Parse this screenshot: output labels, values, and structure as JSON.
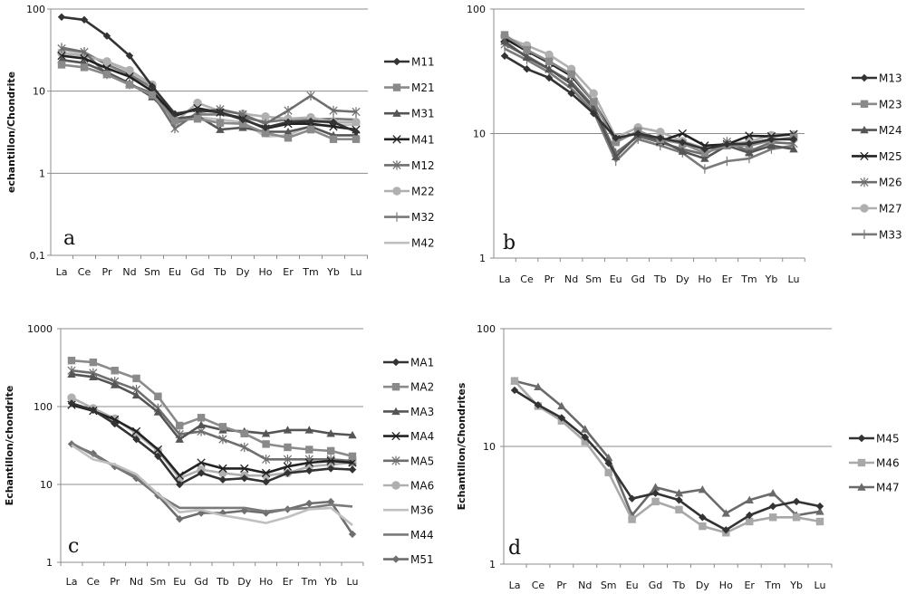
{
  "chart_data": [
    {
      "id": "a",
      "type": "line",
      "panel_label": "a",
      "ylabel": "echantillon/Chondrite",
      "yscale": "log",
      "ylim": [
        0.1,
        100
      ],
      "yticks": [
        "100",
        "10",
        "1",
        "0,1"
      ],
      "ytick_values": [
        100,
        10,
        1,
        0.1
      ],
      "grid": true,
      "legend": "right",
      "categories": [
        "La",
        "Ce",
        "Pr",
        "Nd",
        "Sm",
        "Eu",
        "Gd",
        "Tb",
        "Dy",
        "Ho",
        "Er",
        "Tm",
        "Yb",
        "Lu"
      ],
      "series": [
        {
          "name": "M11",
          "marker": "diamond",
          "color": "#333333",
          "values": [
            80,
            74,
            47,
            27,
            11.5,
            5.3,
            5.9,
            5.5,
            4.5,
            3.6,
            4.2,
            4.3,
            4.2,
            3.2
          ]
        },
        {
          "name": "M21",
          "marker": "square",
          "color": "#8a8a8a",
          "values": [
            21,
            19.5,
            16,
            12,
            9,
            4.4,
            4.6,
            4.1,
            4.0,
            3.1,
            2.7,
            3.4,
            2.6,
            2.6
          ]
        },
        {
          "name": "M31",
          "marker": "triangle",
          "color": "#555555",
          "values": [
            24,
            22,
            17,
            12.5,
            8.5,
            4.6,
            5.0,
            3.4,
            3.6,
            3.2,
            3.2,
            3.7,
            2.9,
            2.9
          ]
        },
        {
          "name": "M41",
          "marker": "x",
          "color": "#222222",
          "values": [
            27,
            25,
            19,
            15,
            10,
            5.0,
            6.2,
            5.5,
            4.6,
            3.5,
            4.0,
            4.0,
            3.7,
            3.4
          ]
        },
        {
          "name": "M12",
          "marker": "star",
          "color": "#6e6e6e",
          "values": [
            33,
            30,
            16,
            12,
            9.5,
            3.5,
            5.5,
            6.0,
            5.2,
            4.0,
            5.8,
            8.8,
            5.8,
            5.6
          ]
        },
        {
          "name": "M22",
          "marker": "circle",
          "color": "#b0b0b0",
          "values": [
            29,
            27,
            23,
            18,
            12,
            4.2,
            7.2,
            5.7,
            5.3,
            4.9,
            4.6,
            4.8,
            4.2,
            4.2
          ]
        },
        {
          "name": "M32",
          "marker": "plus",
          "color": "#7a7a7a",
          "values": [
            34,
            30,
            21,
            16,
            11,
            4.0,
            5.2,
            5.2,
            4.8,
            4.2,
            4.5,
            4.5,
            4.6,
            4.5
          ]
        },
        {
          "name": "M42",
          "marker": "dash",
          "color": "#c0c0c0",
          "values": [
            32,
            28,
            22,
            17,
            11.5,
            4.3,
            4.8,
            4.5,
            4.2,
            2.8,
            2.9,
            3.8,
            3.9,
            3.9
          ]
        }
      ]
    },
    {
      "id": "b",
      "type": "line",
      "panel_label": "b",
      "ylabel": "",
      "yscale": "log",
      "ylim": [
        1,
        100
      ],
      "yticks": [
        "100",
        "10",
        "1"
      ],
      "ytick_values": [
        100,
        10,
        1
      ],
      "grid": true,
      "legend": "right",
      "categories": [
        "La",
        "Ce",
        "Pr",
        "Nd",
        "Sm",
        "Eu",
        "Gd",
        "Tb",
        "Dy",
        "Ho",
        "Er",
        "Tm",
        "Yb",
        "Lu"
      ],
      "series": [
        {
          "name": "M13",
          "marker": "diamond",
          "color": "#333333",
          "values": [
            42,
            33,
            28,
            21,
            14.5,
            9.2,
            10,
            9.2,
            8.5,
            7.5,
            8.2,
            8.3,
            9.0,
            9.0
          ]
        },
        {
          "name": "M23",
          "marker": "square",
          "color": "#8a8a8a",
          "values": [
            62,
            47,
            38,
            30,
            18,
            8.5,
            10.5,
            9.0,
            8.3,
            7.0,
            8.0,
            8.0,
            8.8,
            9.3
          ]
        },
        {
          "name": "M24",
          "marker": "triangle",
          "color": "#555555",
          "values": [
            55,
            41,
            33,
            25,
            16,
            6.5,
            9.8,
            8.8,
            7.2,
            6.3,
            8.0,
            7.0,
            8.0,
            7.5
          ]
        },
        {
          "name": "M25",
          "marker": "x",
          "color": "#222222",
          "values": [
            58,
            46,
            37,
            29,
            18,
            9.0,
            10.2,
            8.7,
            10.0,
            8.0,
            8.2,
            9.6,
            9.5,
            9.9
          ]
        },
        {
          "name": "M26",
          "marker": "star",
          "color": "#6e6e6e",
          "values": [
            52,
            42,
            33,
            26,
            16.5,
            7.0,
            9.5,
            8.5,
            7.5,
            6.8,
            8.6,
            7.2,
            8.5,
            8.3
          ]
        },
        {
          "name": "M27",
          "marker": "circle",
          "color": "#b0b0b0",
          "values": [
            60,
            51,
            43,
            33,
            21,
            9.3,
            11.2,
            10.3,
            8.7,
            7.6,
            8.2,
            8.6,
            9.7,
            9.8
          ]
        },
        {
          "name": "M33",
          "marker": "plus",
          "color": "#7a7a7a",
          "values": [
            48,
            39,
            31,
            23,
            15,
            6.0,
            9.0,
            8.0,
            7.0,
            5.2,
            6.0,
            6.3,
            7.5,
            8.0
          ]
        }
      ]
    },
    {
      "id": "c",
      "type": "line",
      "panel_label": "c",
      "ylabel": "Echantillon/chondrite",
      "yscale": "log",
      "ylim": [
        1,
        1000
      ],
      "yticks": [
        "1000",
        "100",
        "10",
        "1"
      ],
      "ytick_values": [
        1000,
        100,
        10,
        1
      ],
      "grid": true,
      "legend": "right",
      "categories": [
        "La",
        "Ce",
        "Pr",
        "Nd",
        "Sm",
        "Eu",
        "Gd",
        "Tb",
        "Dy",
        "Ho",
        "Er",
        "Tm",
        "Yb",
        "Lu"
      ],
      "series": [
        {
          "name": "MA1",
          "marker": "diamond",
          "color": "#333333",
          "values": [
            110,
            90,
            60,
            38,
            23,
            10,
            14,
            11.5,
            12,
            10.8,
            14,
            15,
            16,
            15.5
          ]
        },
        {
          "name": "MA2",
          "marker": "square",
          "color": "#8a8a8a",
          "values": [
            390,
            370,
            290,
            230,
            135,
            57,
            72,
            55,
            45,
            33,
            30,
            28,
            27,
            23
          ]
        },
        {
          "name": "MA3",
          "marker": "triangle",
          "color": "#555555",
          "values": [
            260,
            240,
            190,
            140,
            85,
            38,
            58,
            50,
            48,
            45,
            50,
            50,
            45,
            43
          ]
        },
        {
          "name": "MA4",
          "marker": "x",
          "color": "#222222",
          "values": [
            105,
            88,
            68,
            48,
            28,
            13,
            19,
            16,
            16,
            14,
            17,
            19,
            20,
            19
          ]
        },
        {
          "name": "MA5",
          "marker": "star",
          "color": "#6e6e6e",
          "values": [
            290,
            270,
            210,
            165,
            95,
            44,
            48,
            38,
            30,
            21,
            21,
            21,
            21,
            20
          ]
        },
        {
          "name": "MA6",
          "marker": "circle",
          "color": "#b0b0b0",
          "values": [
            130,
            95,
            70,
            45,
            27,
            12,
            15.5,
            14,
            13,
            13,
            14,
            17,
            18,
            19
          ]
        },
        {
          "name": "M36",
          "marker": "none",
          "color": "#c0c0c0",
          "values": [
            32,
            21,
            18,
            13.5,
            7.5,
            4.4,
            4.7,
            4.0,
            3.6,
            3.2,
            3.8,
            4.8,
            5.0,
            3.0
          ]
        },
        {
          "name": "M44",
          "marker": "none",
          "color": "#7a7a7a",
          "values": [
            34,
            24,
            17,
            12.5,
            7.3,
            5.0,
            5.0,
            5.0,
            5.0,
            4.5,
            4.8,
            5.0,
            5.5,
            5.2
          ]
        },
        {
          "name": "M51",
          "marker": "diamond",
          "color": "#6e6e6e",
          "values": [
            33,
            25,
            17,
            12,
            7.2,
            3.6,
            4.3,
            4.3,
            4.6,
            4.3,
            4.8,
            5.7,
            6.0,
            2.3
          ]
        }
      ]
    },
    {
      "id": "d",
      "type": "line",
      "panel_label": "d",
      "ylabel": "Echantillon/Chondrites",
      "yscale": "log",
      "ylim": [
        1,
        100
      ],
      "yticks": [
        "100",
        "10",
        "1"
      ],
      "ytick_values": [
        100,
        10,
        1
      ],
      "grid": true,
      "legend": "right",
      "categories": [
        "La",
        "Ce",
        "Pr",
        "Nd",
        "Sm",
        "Eu",
        "Gd",
        "Tb",
        "Dy",
        "Ho",
        "Er",
        "Tm",
        "Yb",
        "Lu"
      ],
      "series": [
        {
          "name": "M45",
          "marker": "diamond",
          "color": "#333333",
          "values": [
            30,
            22.5,
            17.5,
            12,
            7.2,
            3.6,
            4.0,
            3.5,
            2.5,
            1.95,
            2.6,
            3.1,
            3.4,
            3.1
          ]
        },
        {
          "name": "M46",
          "marker": "square",
          "color": "#a8a8a8",
          "values": [
            36,
            22,
            16.5,
            11,
            6.0,
            2.4,
            3.4,
            2.9,
            2.1,
            1.85,
            2.3,
            2.5,
            2.5,
            2.3
          ]
        },
        {
          "name": "M47",
          "marker": "triangle",
          "color": "#6a6a6a",
          "values": [
            36,
            32,
            22,
            14,
            8.0,
            2.6,
            4.5,
            4.0,
            4.3,
            2.7,
            3.5,
            4.0,
            2.6,
            2.8
          ]
        }
      ]
    }
  ]
}
